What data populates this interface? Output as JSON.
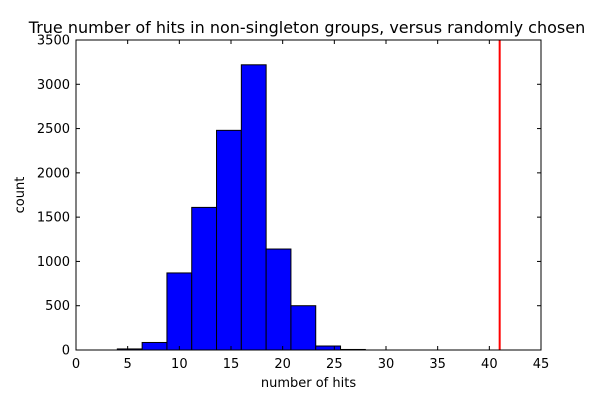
{
  "chart_data": {
    "type": "bar",
    "title": "True number of hits in non-singleton groups, versus randomly chosen",
    "xlabel": "number of hits",
    "ylabel": "count",
    "xlim": [
      0,
      45
    ],
    "ylim": [
      0,
      3500
    ],
    "xticks": [
      0,
      5,
      10,
      15,
      20,
      25,
      30,
      35,
      40,
      45
    ],
    "yticks": [
      0,
      500,
      1000,
      1500,
      2000,
      2500,
      3000,
      3500
    ],
    "grid": false,
    "bars": [
      {
        "x0": 4,
        "x1": 6.4,
        "value": 12
      },
      {
        "x0": 6.4,
        "x1": 8.8,
        "value": 85
      },
      {
        "x0": 8.8,
        "x1": 11.2,
        "value": 870
      },
      {
        "x0": 11.2,
        "x1": 13.6,
        "value": 1610
      },
      {
        "x0": 13.6,
        "x1": 16.0,
        "value": 2480
      },
      {
        "x0": 16.0,
        "x1": 18.4,
        "value": 3220
      },
      {
        "x0": 18.4,
        "x1": 20.8,
        "value": 1140
      },
      {
        "x0": 20.8,
        "x1": 23.2,
        "value": 500
      },
      {
        "x0": 23.2,
        "x1": 25.6,
        "value": 45
      },
      {
        "x0": 25.6,
        "x1": 28.0,
        "value": 6
      }
    ],
    "reference_line": {
      "x": 41
    },
    "colors": {
      "bar_fill": "#0000ff",
      "bar_edge": "#000000",
      "reference_line": "#ff0000"
    }
  }
}
